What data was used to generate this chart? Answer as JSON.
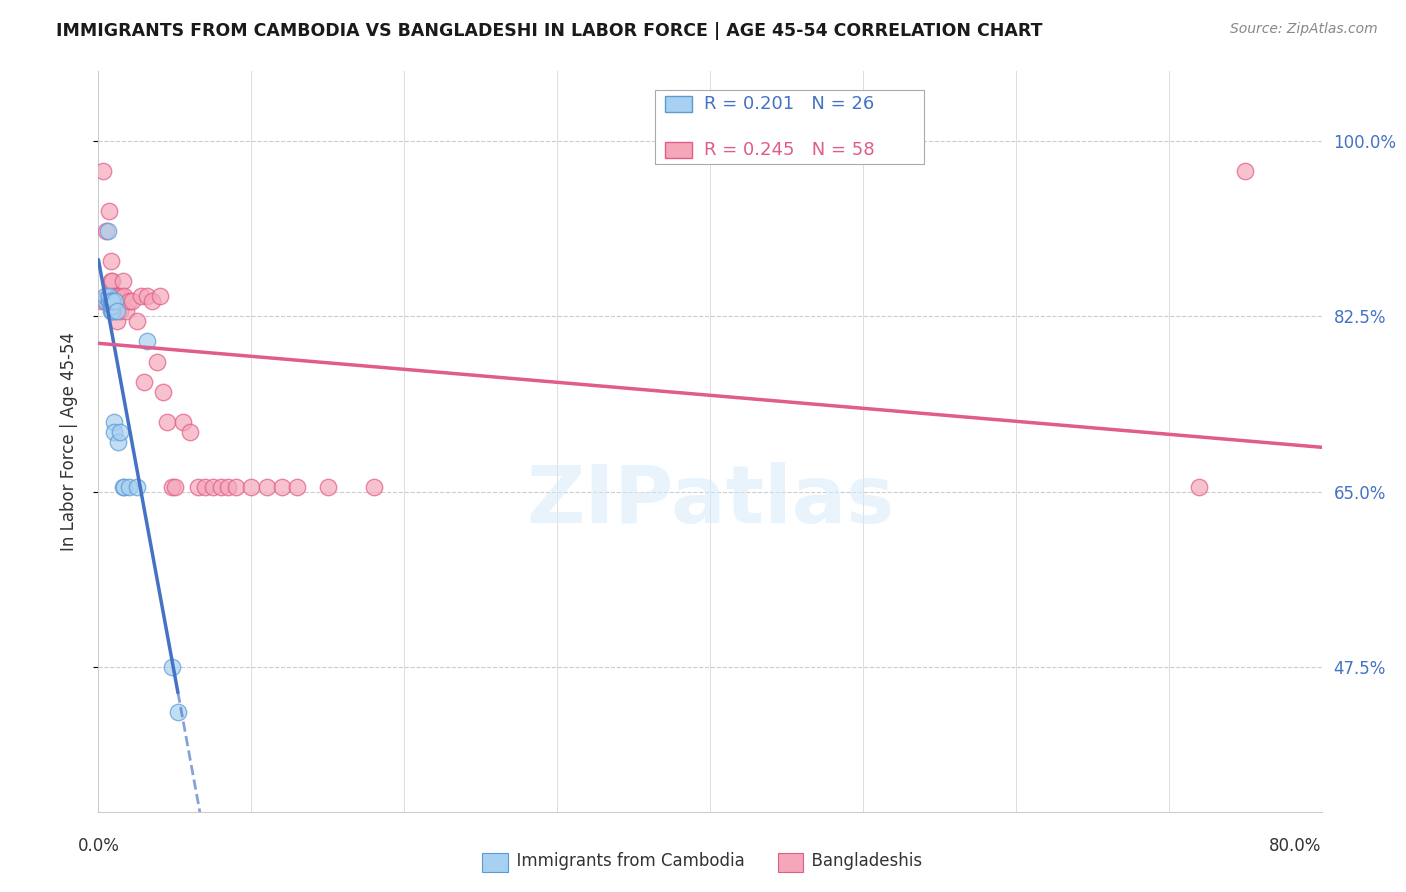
{
  "title": "IMMIGRANTS FROM CAMBODIA VS BANGLADESHI IN LABOR FORCE | AGE 45-54 CORRELATION CHART",
  "source": "Source: ZipAtlas.com",
  "ylabel": "In Labor Force | Age 45-54",
  "ytick_vals": [
    0.475,
    0.65,
    0.825,
    1.0
  ],
  "ytick_labels": [
    "47.5%",
    "65.0%",
    "82.5%",
    "100.0%"
  ],
  "legend_label1": "Immigrants from Cambodia",
  "legend_label2": "Bangladeshis",
  "r1": 0.201,
  "n1": 26,
  "r2": 0.245,
  "n2": 58,
  "color_blue_fill": "#a8d0f0",
  "color_blue_edge": "#5b9bd5",
  "color_pink_fill": "#f4a7b9",
  "color_pink_edge": "#e05c8a",
  "color_blue_line": "#4472c4",
  "color_pink_line": "#e05c8a",
  "background_color": "#ffffff",
  "grid_color": "#cccccc",
  "xlim": [
    0.0,
    0.8
  ],
  "ylim": [
    0.33,
    1.07
  ],
  "cambodia_x": [
    0.004,
    0.004,
    0.006,
    0.007,
    0.007,
    0.007,
    0.008,
    0.008,
    0.008,
    0.009,
    0.009,
    0.009,
    0.009,
    0.01,
    0.01,
    0.011,
    0.012,
    0.013,
    0.014,
    0.016,
    0.017,
    0.02,
    0.025,
    0.032,
    0.048,
    0.052
  ],
  "cambodia_y": [
    0.84,
    0.845,
    0.91,
    0.84,
    0.84,
    0.845,
    0.83,
    0.835,
    0.84,
    0.83,
    0.835,
    0.84,
    0.84,
    0.72,
    0.71,
    0.84,
    0.83,
    0.7,
    0.71,
    0.655,
    0.655,
    0.655,
    0.655,
    0.8,
    0.475,
    0.43
  ],
  "bangladeshi_x": [
    0.002,
    0.003,
    0.004,
    0.005,
    0.005,
    0.006,
    0.007,
    0.007,
    0.008,
    0.008,
    0.008,
    0.009,
    0.009,
    0.009,
    0.01,
    0.01,
    0.01,
    0.01,
    0.011,
    0.011,
    0.012,
    0.012,
    0.013,
    0.013,
    0.014,
    0.015,
    0.016,
    0.017,
    0.018,
    0.02,
    0.022,
    0.025,
    0.028,
    0.03,
    0.032,
    0.035,
    0.038,
    0.04,
    0.042,
    0.045,
    0.048,
    0.05,
    0.055,
    0.06,
    0.065,
    0.07,
    0.075,
    0.08,
    0.085,
    0.09,
    0.1,
    0.11,
    0.12,
    0.13,
    0.15,
    0.18,
    0.72,
    0.75
  ],
  "bangladeshi_y": [
    0.84,
    0.97,
    0.84,
    0.91,
    0.84,
    0.845,
    0.93,
    0.84,
    0.86,
    0.88,
    0.84,
    0.83,
    0.845,
    0.86,
    0.84,
    0.84,
    0.83,
    0.845,
    0.83,
    0.84,
    0.845,
    0.82,
    0.845,
    0.845,
    0.83,
    0.845,
    0.86,
    0.845,
    0.83,
    0.84,
    0.84,
    0.82,
    0.845,
    0.76,
    0.845,
    0.84,
    0.78,
    0.845,
    0.75,
    0.72,
    0.655,
    0.655,
    0.72,
    0.71,
    0.655,
    0.655,
    0.655,
    0.655,
    0.655,
    0.655,
    0.655,
    0.655,
    0.655,
    0.655,
    0.655,
    0.655,
    0.655,
    0.97
  ]
}
